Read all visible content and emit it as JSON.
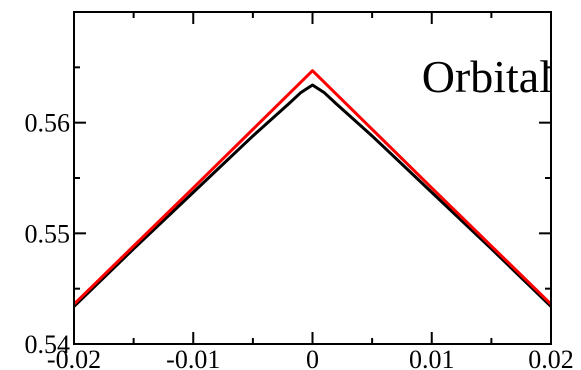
{
  "chart_data": {
    "type": "line",
    "title": "",
    "xlabel": "",
    "ylabel": "",
    "xlim": [
      -0.02,
      0.02
    ],
    "ylim": [
      0.54,
      0.57
    ],
    "grid": false,
    "legend": "none",
    "x_ticks": [
      -0.02,
      -0.01,
      0,
      0.01,
      0.02
    ],
    "x_tick_labels": [
      "-0.02",
      "-0.01",
      "0",
      "0.01",
      "0.02"
    ],
    "y_ticks": [
      0.54,
      0.55,
      0.56
    ],
    "y_tick_labels": [
      "0.54",
      "0.55",
      "0.56"
    ],
    "annotations": [
      {
        "text": "Orbital"
      }
    ],
    "series": [
      {
        "color": "#000000",
        "x": [
          -0.02,
          -0.015,
          -0.01,
          -0.005,
          -0.002,
          -0.001,
          0,
          0.001,
          0.002,
          0.005,
          0.01,
          0.015,
          0.02
        ],
        "y": [
          0.5434,
          0.5486,
          0.5537,
          0.5588,
          0.5617,
          0.5627,
          0.5634,
          0.5627,
          0.5617,
          0.5588,
          0.5537,
          0.5486,
          0.5434
        ]
      },
      {
        "color": "#ff0000",
        "x": [
          -0.02,
          -0.01,
          0,
          0.01,
          0.02
        ],
        "y": [
          0.5436,
          0.5541,
          0.5647,
          0.5541,
          0.5436
        ]
      }
    ]
  }
}
